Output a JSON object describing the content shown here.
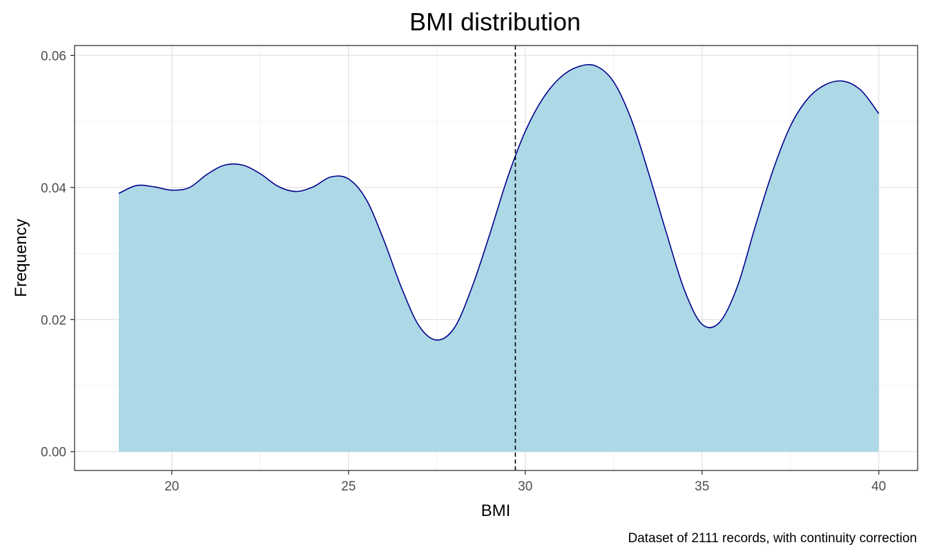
{
  "chart_data": {
    "type": "area",
    "title": "BMI distribution",
    "xlabel": "BMI",
    "ylabel": "Frequency",
    "caption": "Dataset of 2111 records, with continuity correction",
    "xlim": [
      17.25,
      41.1
    ],
    "ylim": [
      -0.00285,
      0.0615
    ],
    "x_ticks": [
      20,
      25,
      30,
      35,
      40
    ],
    "x_tick_labels": [
      "20",
      "25",
      "30",
      "35",
      "40"
    ],
    "y_ticks": [
      0.0,
      0.02,
      0.04,
      0.06
    ],
    "y_tick_labels": [
      "0.00",
      "0.02",
      "0.04",
      "0.06"
    ],
    "x_minor_ticks": [
      22.5,
      27.5,
      32.5,
      37.5
    ],
    "y_minor_ticks": [
      0.01,
      0.03,
      0.05
    ],
    "grid": true,
    "vline": {
      "x": 29.72,
      "style": "dashed",
      "color": "#000000"
    },
    "series": [
      {
        "fill": "#add8e6",
        "stroke": "#00008b",
        "points": [
          [
            18.5,
            0.0391
          ],
          [
            19.0,
            0.0403
          ],
          [
            19.5,
            0.0401
          ],
          [
            20.0,
            0.0396
          ],
          [
            20.5,
            0.04
          ],
          [
            21.0,
            0.042
          ],
          [
            21.5,
            0.0434
          ],
          [
            22.0,
            0.0434
          ],
          [
            22.5,
            0.0421
          ],
          [
            23.0,
            0.0402
          ],
          [
            23.5,
            0.0394
          ],
          [
            24.0,
            0.0401
          ],
          [
            24.5,
            0.0416
          ],
          [
            25.0,
            0.0413
          ],
          [
            25.5,
            0.0382
          ],
          [
            26.0,
            0.032
          ],
          [
            26.5,
            0.0248
          ],
          [
            27.0,
            0.019
          ],
          [
            27.5,
            0.0169
          ],
          [
            28.0,
            0.0188
          ],
          [
            28.5,
            0.025
          ],
          [
            29.0,
            0.033
          ],
          [
            29.5,
            0.0415
          ],
          [
            30.0,
            0.0485
          ],
          [
            30.5,
            0.0535
          ],
          [
            31.0,
            0.0567
          ],
          [
            31.5,
            0.0583
          ],
          [
            32.0,
            0.0584
          ],
          [
            32.5,
            0.056
          ],
          [
            33.0,
            0.0503
          ],
          [
            33.5,
            0.042
          ],
          [
            34.0,
            0.033
          ],
          [
            34.5,
            0.0245
          ],
          [
            35.0,
            0.0193
          ],
          [
            35.5,
            0.0196
          ],
          [
            36.0,
            0.025
          ],
          [
            36.5,
            0.034
          ],
          [
            37.0,
            0.0425
          ],
          [
            37.5,
            0.0493
          ],
          [
            38.0,
            0.0535
          ],
          [
            38.5,
            0.0556
          ],
          [
            39.0,
            0.0561
          ],
          [
            39.5,
            0.0547
          ],
          [
            40.0,
            0.0512
          ]
        ]
      }
    ]
  }
}
